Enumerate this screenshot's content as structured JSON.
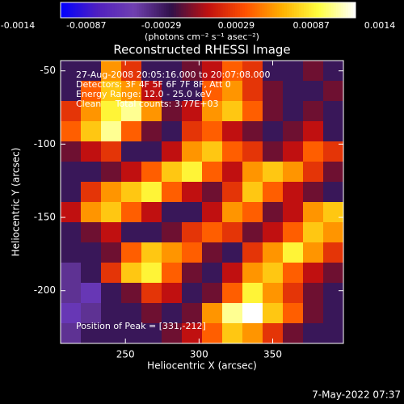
{
  "chart_data": {
    "type": "heatmap",
    "title": "Reconstructed RHESSI Image",
    "xlabel": "Heliocentric X (arcsec)",
    "ylabel": "Heliocentric Y (arcsec)",
    "colorbar_label": "(photons cm⁻² s⁻¹ asec⁻²)",
    "annotations": [
      "27-Aug-2008 20:05:16.000 to 20:07:08.000",
      "Detectors: 3F 4F 5F 6F 7F 8F, Att 0",
      "Energy Range: 12.0 - 25.0 keV",
      "Clean     Total counts: 3.77E+03",
      "Position of Peak = [331,-212]"
    ],
    "footer": "7-May-2022 07:37",
    "xlim": [
      206,
      398
    ],
    "xticks": [
      250,
      300,
      350
    ],
    "ylim": [
      -236,
      -43
    ],
    "yticks": [
      -50,
      -100,
      -150,
      -200
    ],
    "clim": [
      -0.0014,
      0.0014
    ],
    "cticks": [
      -0.0014,
      -0.00087,
      -0.00029,
      0.00029,
      0.00087,
      0.0014
    ],
    "colors": [
      "#0000ff",
      "#5020c0",
      "#7040b0",
      "#30104a",
      "#c01010",
      "#ff5000",
      "#ffb000",
      "#ffff40",
      "#ffffff"
    ],
    "z": [
      [
        -0.0004,
        -0.0004,
        0.0006,
        0.0002,
        -0.0004,
        -0.0004,
        -0.0002,
        0,
        0.0004,
        0.0002,
        -0.0004,
        -0.0004,
        -0.0002,
        -0.0004
      ],
      [
        -0.0004,
        0.0004,
        0.0008,
        0.0006,
        0,
        -0.0004,
        -0.0004,
        0.0004,
        0.0006,
        0.0002,
        -0.0002,
        -0.0004,
        -0.0004,
        -0.0002
      ],
      [
        0.0002,
        0.0006,
        0.001,
        0.0012,
        0.0006,
        -0.0002,
        0,
        0.0006,
        0.0008,
        0.0004,
        -0.0002,
        -0.0004,
        -0.0002,
        -0.0004
      ],
      [
        0.0004,
        0.0008,
        0.0012,
        0.0004,
        -0.0002,
        -0.0004,
        0.0002,
        0.0004,
        0,
        -0.0002,
        -0.0004,
        -0.0002,
        0,
        -0.0004
      ],
      [
        -0.0002,
        0,
        0.0002,
        -0.0004,
        -0.0004,
        0,
        0.0006,
        0.0008,
        0.0004,
        0.0002,
        -0.0002,
        0,
        0.0004,
        0.0002
      ],
      [
        -0.0004,
        -0.0004,
        -0.0002,
        0,
        0.0004,
        0.0008,
        0.001,
        0.0004,
        0,
        0.0006,
        0.0008,
        0.0006,
        0.0002,
        -0.0002
      ],
      [
        -0.0004,
        0.0002,
        0.0006,
        0.0008,
        0.001,
        0.0004,
        0,
        -0.0002,
        0.0002,
        0.0008,
        0.0004,
        0,
        -0.0002,
        -0.0004
      ],
      [
        0,
        0.0006,
        0.0008,
        0.0004,
        0,
        -0.0004,
        -0.0004,
        0,
        0.0006,
        0.0004,
        -0.0002,
        0,
        0.0006,
        0.0008
      ],
      [
        -0.0004,
        -0.0002,
        0,
        -0.0004,
        -0.0004,
        -0.0002,
        0.0002,
        0.0004,
        0.0002,
        -0.0002,
        0,
        0.0004,
        0.0008,
        0.0006
      ],
      [
        -0.0004,
        -0.0004,
        -0.0002,
        0.0004,
        0.0008,
        0.0006,
        0.0004,
        -0.0002,
        -0.0004,
        0.0002,
        0.0006,
        0.001,
        0.0006,
        0.0002
      ],
      [
        -0.0006,
        -0.0004,
        0.0002,
        0.0008,
        0.001,
        0.0004,
        -0.0002,
        -0.0004,
        0,
        0.0006,
        0.0008,
        0.0004,
        0,
        -0.0002
      ],
      [
        -0.0006,
        -0.0008,
        -0.0004,
        -0.0002,
        0.0002,
        0,
        -0.0004,
        -0.0002,
        0.0004,
        0.001,
        0.0006,
        0.0002,
        -0.0002,
        -0.0004
      ],
      [
        -0.0008,
        -0.0006,
        -0.0004,
        -0.0004,
        -0.0002,
        -0.0004,
        -0.0002,
        0.0006,
        0.0012,
        0.0014,
        0.0008,
        0.0004,
        -0.0002,
        -0.0004
      ],
      [
        -0.0006,
        -0.0004,
        -0.0004,
        -0.0004,
        -0.0004,
        -0.0002,
        0,
        0.0004,
        0.0008,
        0.0006,
        0.0002,
        -0.0002,
        -0.0004,
        -0.0004
      ]
    ]
  }
}
